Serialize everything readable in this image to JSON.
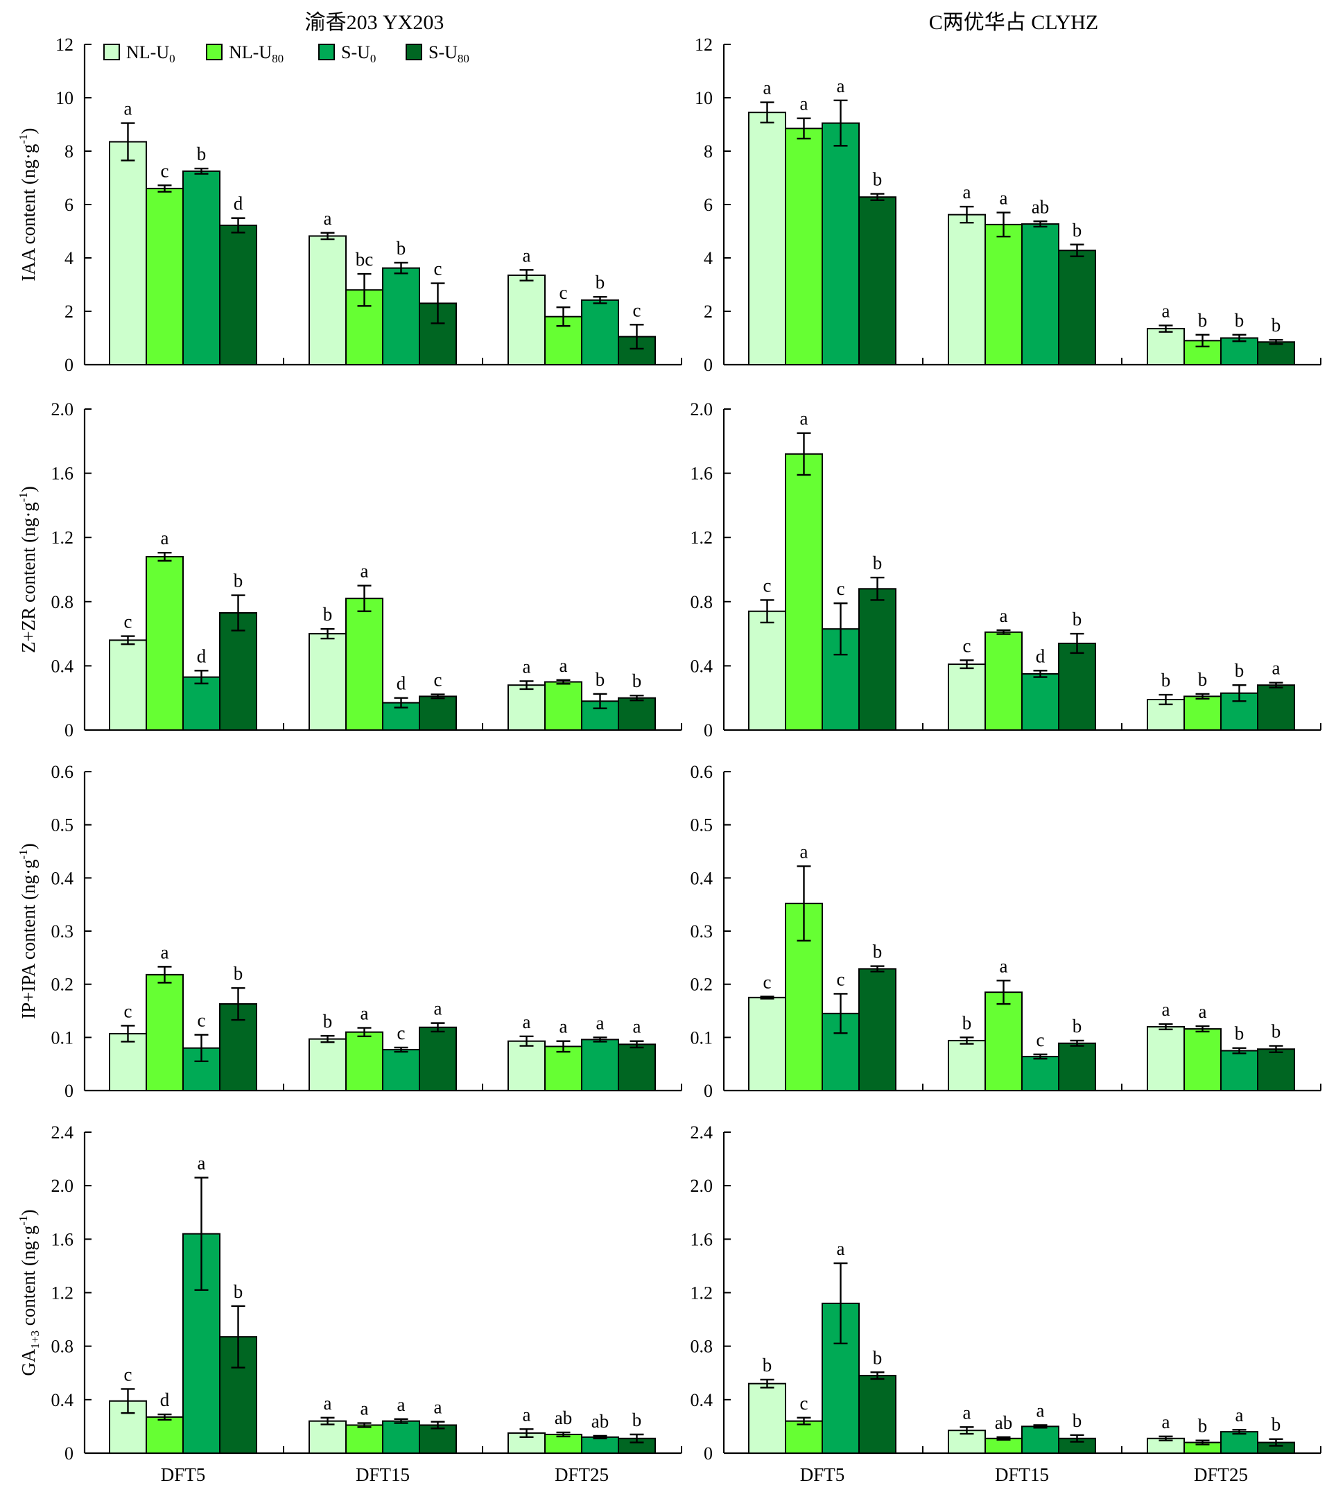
{
  "figure": {
    "variety_titles": [
      "渝香203 YX203",
      "C两优华占 CLYHZ"
    ],
    "categories": [
      "DFT5",
      "DFT15",
      "DFT25"
    ]
  },
  "legend": {
    "placement": "top-left",
    "items": [
      {
        "main": "NL-U",
        "sub": "0",
        "color": "#ccffcc"
      },
      {
        "main": "NL-U",
        "sub": "80",
        "color": "#66ff33"
      },
      {
        "main": "S-U",
        "sub": "0",
        "color": "#00aa55"
      },
      {
        "main": "S-U",
        "sub": "80",
        "color": "#006622"
      }
    ]
  },
  "chart_data": [
    {
      "type": "bar",
      "panel": "IAA",
      "variety": "渝香203 YX203",
      "ylabel": {
        "main": "IAA content (ng·g",
        "sup": "-1",
        "tail": ")"
      },
      "ylim": [
        0,
        12
      ],
      "yticks": [
        "0",
        "2",
        "4",
        "6",
        "8",
        "10",
        "12"
      ],
      "categories": [
        "DFT5",
        "DFT15",
        "DFT25"
      ],
      "series": [
        {
          "name": "NL-U0",
          "values": [
            8.35,
            4.82,
            3.35
          ],
          "errors": [
            0.7,
            0.12,
            0.2
          ],
          "letters": [
            "a",
            "a",
            "a"
          ]
        },
        {
          "name": "NL-U80",
          "values": [
            6.6,
            2.8,
            1.8
          ],
          "errors": [
            0.12,
            0.6,
            0.35
          ],
          "letters": [
            "c",
            "bc",
            "c"
          ]
        },
        {
          "name": "S-U0",
          "values": [
            7.25,
            3.62,
            2.42
          ],
          "errors": [
            0.1,
            0.2,
            0.12
          ],
          "letters": [
            "b",
            "b",
            "b"
          ]
        },
        {
          "name": "S-U80",
          "values": [
            5.22,
            2.3,
            1.05
          ],
          "errors": [
            0.27,
            0.75,
            0.45
          ],
          "letters": [
            "d",
            "c",
            "c"
          ]
        }
      ]
    },
    {
      "type": "bar",
      "panel": "IAA",
      "variety": "C两优华占 CLYHZ",
      "ylim": [
        0,
        12
      ],
      "yticks": [
        "0",
        "2",
        "4",
        "6",
        "8",
        "10",
        "12"
      ],
      "categories": [
        "DFT5",
        "DFT15",
        "DFT25"
      ],
      "series": [
        {
          "name": "NL-U0",
          "values": [
            9.45,
            5.62,
            1.35
          ],
          "errors": [
            0.38,
            0.3,
            0.12
          ],
          "letters": [
            "a",
            "a",
            "a"
          ]
        },
        {
          "name": "NL-U80",
          "values": [
            8.85,
            5.25,
            0.9
          ],
          "errors": [
            0.38,
            0.45,
            0.22
          ],
          "letters": [
            "a",
            "a",
            "b"
          ]
        },
        {
          "name": "S-U0",
          "values": [
            9.05,
            5.27,
            1.0
          ],
          "errors": [
            0.85,
            0.1,
            0.12
          ],
          "letters": [
            "a",
            "ab",
            "b"
          ]
        },
        {
          "name": "S-U80",
          "values": [
            6.28,
            4.28,
            0.85
          ],
          "errors": [
            0.12,
            0.22,
            0.08
          ],
          "letters": [
            "b",
            "b",
            "b"
          ]
        }
      ]
    },
    {
      "type": "bar",
      "panel": "Z+ZR",
      "variety": "渝香203 YX203",
      "ylabel": {
        "main": "Z+ZR content (ng·g",
        "sup": "-1",
        "tail": ")"
      },
      "ylim": [
        0,
        2.0
      ],
      "yticks": [
        "0",
        "0.4",
        "0.8",
        "1.2",
        "1.6",
        "2.0"
      ],
      "categories": [
        "DFT5",
        "DFT15",
        "DFT25"
      ],
      "series": [
        {
          "name": "NL-U0",
          "values": [
            0.56,
            0.6,
            0.28
          ],
          "errors": [
            0.025,
            0.03,
            0.025
          ],
          "letters": [
            "c",
            "b",
            "a"
          ]
        },
        {
          "name": "NL-U80",
          "values": [
            1.08,
            0.82,
            0.3
          ],
          "errors": [
            0.025,
            0.08,
            0.012
          ],
          "letters": [
            "a",
            "a",
            "a"
          ]
        },
        {
          "name": "S-U0",
          "values": [
            0.33,
            0.17,
            0.18
          ],
          "errors": [
            0.04,
            0.03,
            0.045
          ],
          "letters": [
            "d",
            "d",
            "b"
          ]
        },
        {
          "name": "S-U80",
          "values": [
            0.73,
            0.21,
            0.2
          ],
          "errors": [
            0.11,
            0.012,
            0.015
          ],
          "letters": [
            "b",
            "c",
            "b"
          ]
        }
      ]
    },
    {
      "type": "bar",
      "panel": "Z+ZR",
      "variety": "C两优华占 CLYHZ",
      "ylim": [
        0,
        2.0
      ],
      "yticks": [
        "0",
        "0.4",
        "0.8",
        "1.2",
        "1.6",
        "2.0"
      ],
      "categories": [
        "DFT5",
        "DFT15",
        "DFT25"
      ],
      "series": [
        {
          "name": "NL-U0",
          "values": [
            0.74,
            0.41,
            0.19
          ],
          "errors": [
            0.07,
            0.025,
            0.03
          ],
          "letters": [
            "c",
            "c",
            "b"
          ]
        },
        {
          "name": "NL-U80",
          "values": [
            1.72,
            0.61,
            0.21
          ],
          "errors": [
            0.13,
            0.012,
            0.015
          ],
          "letters": [
            "a",
            "a",
            "b"
          ]
        },
        {
          "name": "S-U0",
          "values": [
            0.63,
            0.35,
            0.23
          ],
          "errors": [
            0.16,
            0.02,
            0.05
          ],
          "letters": [
            "c",
            "d",
            "b"
          ]
        },
        {
          "name": "S-U80",
          "values": [
            0.88,
            0.54,
            0.28
          ],
          "errors": [
            0.07,
            0.06,
            0.015
          ],
          "letters": [
            "b",
            "b",
            "a"
          ]
        }
      ]
    },
    {
      "type": "bar",
      "panel": "IP+IPA",
      "variety": "渝香203 YX203",
      "ylabel": {
        "main": "IP+IPA content (ng·g",
        "sup": "-1",
        "tail": ")"
      },
      "ylim": [
        0,
        0.6
      ],
      "yticks": [
        "0",
        "0.1",
        "0.2",
        "0.3",
        "0.4",
        "0.5",
        "0.6"
      ],
      "categories": [
        "DFT5",
        "DFT15",
        "DFT25"
      ],
      "series": [
        {
          "name": "NL-U0",
          "values": [
            0.107,
            0.097,
            0.093
          ],
          "errors": [
            0.015,
            0.006,
            0.009
          ],
          "letters": [
            "c",
            "b",
            "a"
          ]
        },
        {
          "name": "NL-U80",
          "values": [
            0.218,
            0.11,
            0.083
          ],
          "errors": [
            0.015,
            0.008,
            0.01
          ],
          "letters": [
            "a",
            "a",
            "a"
          ]
        },
        {
          "name": "S-U0",
          "values": [
            0.08,
            0.077,
            0.096
          ],
          "errors": [
            0.025,
            0.004,
            0.004
          ],
          "letters": [
            "c",
            "c",
            "a"
          ]
        },
        {
          "name": "S-U80",
          "values": [
            0.163,
            0.119,
            0.087
          ],
          "errors": [
            0.03,
            0.008,
            0.006
          ],
          "letters": [
            "b",
            "a",
            "a"
          ]
        }
      ]
    },
    {
      "type": "bar",
      "panel": "IP+IPA",
      "variety": "C两优华占 CLYHZ",
      "ylim": [
        0,
        0.6
      ],
      "yticks": [
        "0",
        "0.1",
        "0.2",
        "0.3",
        "0.4",
        "0.5",
        "0.6"
      ],
      "categories": [
        "DFT5",
        "DFT15",
        "DFT25"
      ],
      "series": [
        {
          "name": "NL-U0",
          "values": [
            0.175,
            0.094,
            0.12
          ],
          "errors": [
            0.002,
            0.006,
            0.005
          ],
          "letters": [
            "c",
            "b",
            "a"
          ]
        },
        {
          "name": "NL-U80",
          "values": [
            0.352,
            0.185,
            0.116
          ],
          "errors": [
            0.07,
            0.022,
            0.005
          ],
          "letters": [
            "a",
            "a",
            "a"
          ]
        },
        {
          "name": "S-U0",
          "values": [
            0.145,
            0.064,
            0.075
          ],
          "errors": [
            0.037,
            0.004,
            0.005
          ],
          "letters": [
            "c",
            "c",
            "b"
          ]
        },
        {
          "name": "S-U80",
          "values": [
            0.229,
            0.089,
            0.078
          ],
          "errors": [
            0.005,
            0.005,
            0.006
          ],
          "letters": [
            "b",
            "b",
            "b"
          ]
        }
      ]
    },
    {
      "type": "bar",
      "panel": "GA1+3",
      "variety": "渝香203 YX203",
      "ylabel": {
        "main": "GA",
        "sub": "1+3",
        "tail": " content (ng·g",
        "sup": "-1",
        "end": ")"
      },
      "ylim": [
        0,
        2.4
      ],
      "yticks": [
        "0",
        "0.4",
        "0.8",
        "1.2",
        "1.6",
        "2.0",
        "2.4"
      ],
      "categories": [
        "DFT5",
        "DFT15",
        "DFT25"
      ],
      "series": [
        {
          "name": "NL-U0",
          "values": [
            0.39,
            0.24,
            0.15
          ],
          "errors": [
            0.09,
            0.025,
            0.03
          ],
          "letters": [
            "c",
            "a",
            "a"
          ]
        },
        {
          "name": "NL-U80",
          "values": [
            0.27,
            0.21,
            0.14
          ],
          "errors": [
            0.02,
            0.015,
            0.015
          ],
          "letters": [
            "d",
            "a",
            "ab"
          ]
        },
        {
          "name": "S-U0",
          "values": [
            1.64,
            0.24,
            0.12
          ],
          "errors": [
            0.42,
            0.015,
            0.01
          ],
          "letters": [
            "a",
            "a",
            "ab"
          ]
        },
        {
          "name": "S-U80",
          "values": [
            0.87,
            0.21,
            0.11
          ],
          "errors": [
            0.23,
            0.025,
            0.03
          ],
          "letters": [
            "b",
            "a",
            "b"
          ]
        }
      ]
    },
    {
      "type": "bar",
      "panel": "GA1+3",
      "variety": "C两优华占 CLYHZ",
      "ylim": [
        0,
        2.4
      ],
      "yticks": [
        "0",
        "0.4",
        "0.8",
        "1.2",
        "1.6",
        "2.0",
        "2.4"
      ],
      "categories": [
        "DFT5",
        "DFT15",
        "DFT25"
      ],
      "series": [
        {
          "name": "NL-U0",
          "values": [
            0.52,
            0.17,
            0.11
          ],
          "errors": [
            0.03,
            0.025,
            0.015
          ],
          "letters": [
            "b",
            "a",
            "a"
          ]
        },
        {
          "name": "NL-U80",
          "values": [
            0.24,
            0.11,
            0.08
          ],
          "errors": [
            0.025,
            0.01,
            0.015
          ],
          "letters": [
            "c",
            "ab",
            "b"
          ]
        },
        {
          "name": "S-U0",
          "values": [
            1.12,
            0.2,
            0.16
          ],
          "errors": [
            0.3,
            0.01,
            0.015
          ],
          "letters": [
            "a",
            "a",
            "a"
          ]
        },
        {
          "name": "S-U80",
          "values": [
            0.58,
            0.11,
            0.08
          ],
          "errors": [
            0.025,
            0.025,
            0.025
          ],
          "letters": [
            "b",
            "b",
            "b"
          ]
        }
      ]
    }
  ]
}
